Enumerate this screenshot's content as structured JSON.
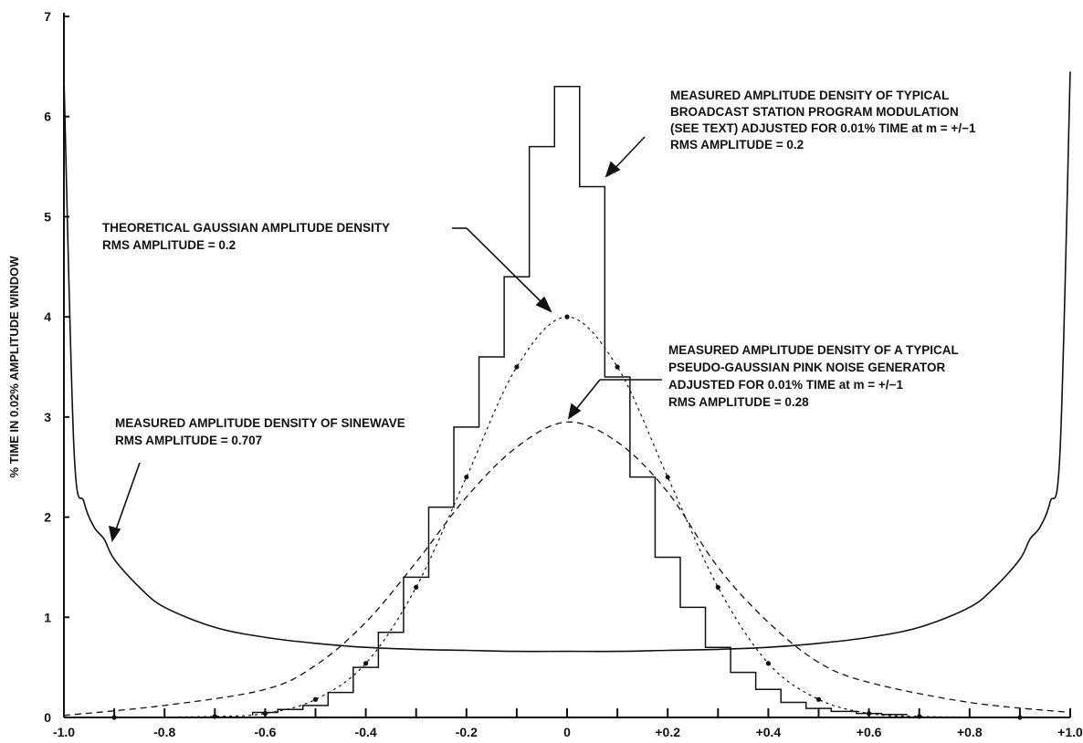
{
  "chart_data": {
    "type": "line",
    "ylabel": "% TIME IN 0.02% AMPLITUDE WINDOW",
    "xlabel": "",
    "xlim": [
      -1.0,
      1.0
    ],
    "ylim": [
      0,
      7
    ],
    "grid": false,
    "legend": "none",
    "x_tick_labels": [
      "-1.0",
      "-0.8",
      "-0.6",
      "-0.4",
      "-0.2",
      "0",
      "+0.2",
      "+0.4",
      "+0.6",
      "+0.8",
      "+1.0"
    ],
    "x_tick_values": [
      -1.0,
      -0.8,
      -0.6,
      -0.4,
      -0.2,
      0,
      0.2,
      0.4,
      0.6,
      0.8,
      1.0
    ],
    "y_tick_labels": [
      "0",
      "1",
      "2",
      "3",
      "4",
      "5",
      "6",
      "7"
    ],
    "y_tick_values": [
      0,
      1,
      2,
      3,
      4,
      5,
      6,
      7
    ],
    "series": [
      {
        "style": "step-solid",
        "annotation": "broadcast",
        "x": [
          -0.6,
          -0.55,
          -0.5,
          -0.45,
          -0.4,
          -0.35,
          -0.3,
          -0.25,
          -0.2,
          -0.15,
          -0.1,
          -0.05,
          0,
          0.05,
          0.1,
          0.15,
          0.2,
          0.25,
          0.3,
          0.35,
          0.4,
          0.45,
          0.5,
          0.55,
          0.6,
          0.65
        ],
        "y": [
          0.05,
          0.08,
          0.12,
          0.25,
          0.5,
          0.85,
          1.4,
          2.1,
          2.9,
          3.6,
          4.4,
          5.7,
          6.3,
          5.3,
          3.4,
          2.4,
          1.6,
          1.1,
          0.7,
          0.45,
          0.28,
          0.15,
          0.09,
          0.06,
          0.04,
          0.03
        ]
      },
      {
        "style": "dotted",
        "annotation": "gaussian",
        "x": [
          -0.9,
          -0.7,
          -0.6,
          -0.5,
          -0.4,
          -0.3,
          -0.2,
          -0.1,
          0,
          0.1,
          0.2,
          0.3,
          0.4,
          0.5,
          0.6,
          0.7,
          0.9
        ],
        "y": [
          0.0,
          0.01,
          0.04,
          0.18,
          0.54,
          1.3,
          2.4,
          3.5,
          4.0,
          3.5,
          2.4,
          1.3,
          0.54,
          0.18,
          0.04,
          0.01,
          0.0
        ]
      },
      {
        "style": "dashed",
        "annotation": "pink_noise",
        "x": [
          -1.0,
          -0.8,
          -0.6,
          -0.5,
          -0.4,
          -0.3,
          -0.2,
          -0.1,
          0,
          0.1,
          0.2,
          0.3,
          0.4,
          0.5,
          0.6,
          0.8,
          1.0
        ],
        "y": [
          0.02,
          0.12,
          0.28,
          0.52,
          0.95,
          1.55,
          2.2,
          2.7,
          2.95,
          2.75,
          2.25,
          1.5,
          0.95,
          0.55,
          0.35,
          0.15,
          0.05
        ]
      },
      {
        "style": "solid",
        "annotation": "sinewave",
        "x": [
          -1.0,
          -0.98,
          -0.96,
          -0.94,
          -0.92,
          -0.9,
          -0.85,
          -0.8,
          -0.7,
          -0.6,
          -0.5,
          -0.4,
          -0.3,
          -0.2,
          -0.1,
          0,
          0.1,
          0.2,
          0.3,
          0.4,
          0.5,
          0.6,
          0.7,
          0.8,
          0.85,
          0.9,
          0.92,
          0.94,
          0.96,
          0.98,
          1.0
        ],
        "y": [
          6.4,
          2.68,
          2.15,
          1.9,
          1.78,
          1.58,
          1.3,
          1.1,
          0.9,
          0.8,
          0.74,
          0.7,
          0.68,
          0.67,
          0.66,
          0.66,
          0.66,
          0.67,
          0.68,
          0.7,
          0.74,
          0.8,
          0.9,
          1.1,
          1.3,
          1.58,
          1.78,
          1.9,
          2.15,
          2.68,
          6.45
        ]
      }
    ],
    "annotations": {
      "broadcast": [
        "MEASURED AMPLITUDE DENSITY OF TYPICAL",
        "BROADCAST STATION PROGRAM MODULATION",
        "(SEE TEXT) ADJUSTED FOR 0.01% TIME at m = +/−1",
        "RMS AMPLITUDE = 0.2"
      ],
      "gaussian": [
        "THEORETICAL GAUSSIAN AMPLITUDE DENSITY",
        "RMS AMPLITUDE = 0.2"
      ],
      "pink_noise": [
        "MEASURED AMPLITUDE DENSITY OF A TYPICAL",
        "PSEUDO-GAUSSIAN PINK NOISE GENERATOR",
        "ADJUSTED FOR 0.01% TIME at m = +/−1",
        "RMS AMPLITUDE = 0.28"
      ],
      "sinewave": [
        "MEASURED AMPLITUDE DENSITY OF SINEWAVE",
        "RMS AMPLITUDE = 0.707"
      ]
    }
  }
}
